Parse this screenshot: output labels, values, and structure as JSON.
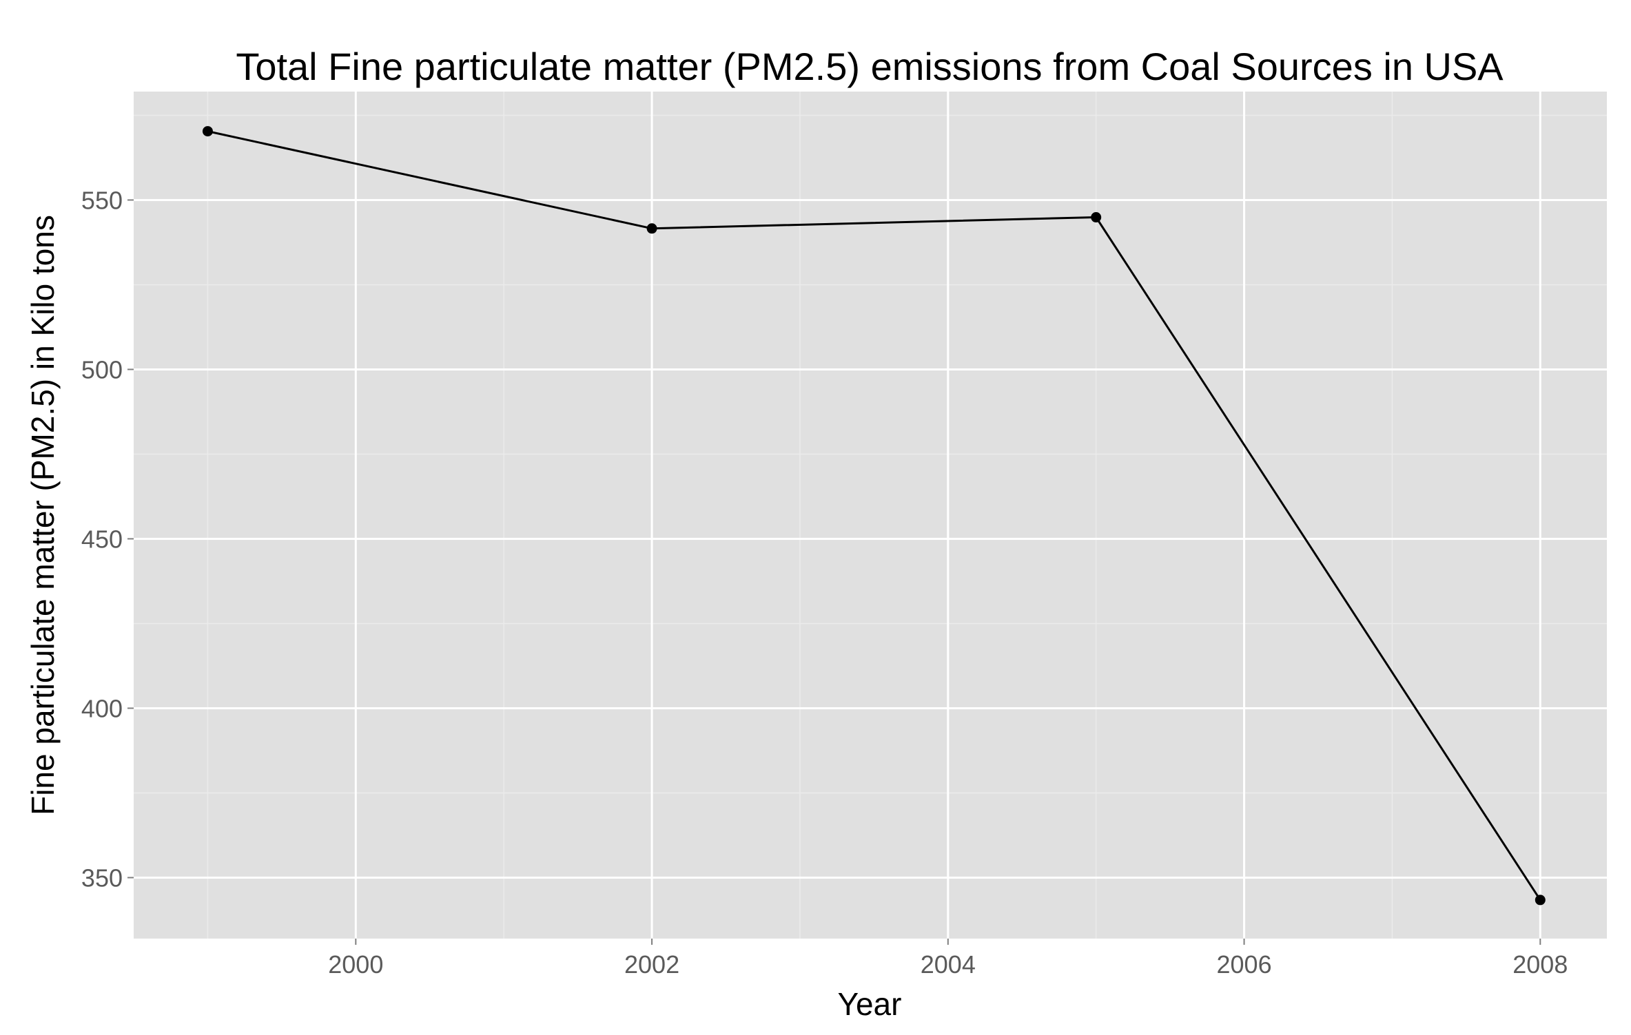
{
  "colors": {
    "panel_background": "#e0e0e0",
    "major_grid": "#ffffff",
    "minor_grid": "#ebebeb",
    "series_line": "#000000",
    "tick_text": "#5a5a5a",
    "title_text": "#000000"
  },
  "chart_data": {
    "type": "line",
    "title": "Total Fine particulate matter (PM2.5) emissions from Coal Sources in USA",
    "xlabel": "Year",
    "ylabel": "Fine particulate matter (PM2.5) in Kilo tons",
    "x": [
      1999,
      2002,
      2005,
      2008
    ],
    "series": [
      {
        "values": [
          570.3,
          541.6,
          544.9,
          343.4
        ],
        "markers": true
      }
    ],
    "xlim": [
      1998.5,
      2008.45
    ],
    "ylim": [
      332,
      582
    ],
    "x_ticks": [
      2000,
      2002,
      2004,
      2006,
      2008
    ],
    "x_tick_labels": [
      "2000",
      "2002",
      "2004",
      "2006",
      "2008"
    ],
    "x_minor_ticks": [
      1999,
      2001,
      2003,
      2005,
      2007
    ],
    "y_ticks": [
      350,
      400,
      450,
      500,
      550
    ],
    "y_tick_labels": [
      "350",
      "400",
      "450",
      "500",
      "550"
    ],
    "y_minor_ticks": [
      375,
      425,
      475,
      525,
      575
    ],
    "grid": true,
    "legend": "none"
  }
}
